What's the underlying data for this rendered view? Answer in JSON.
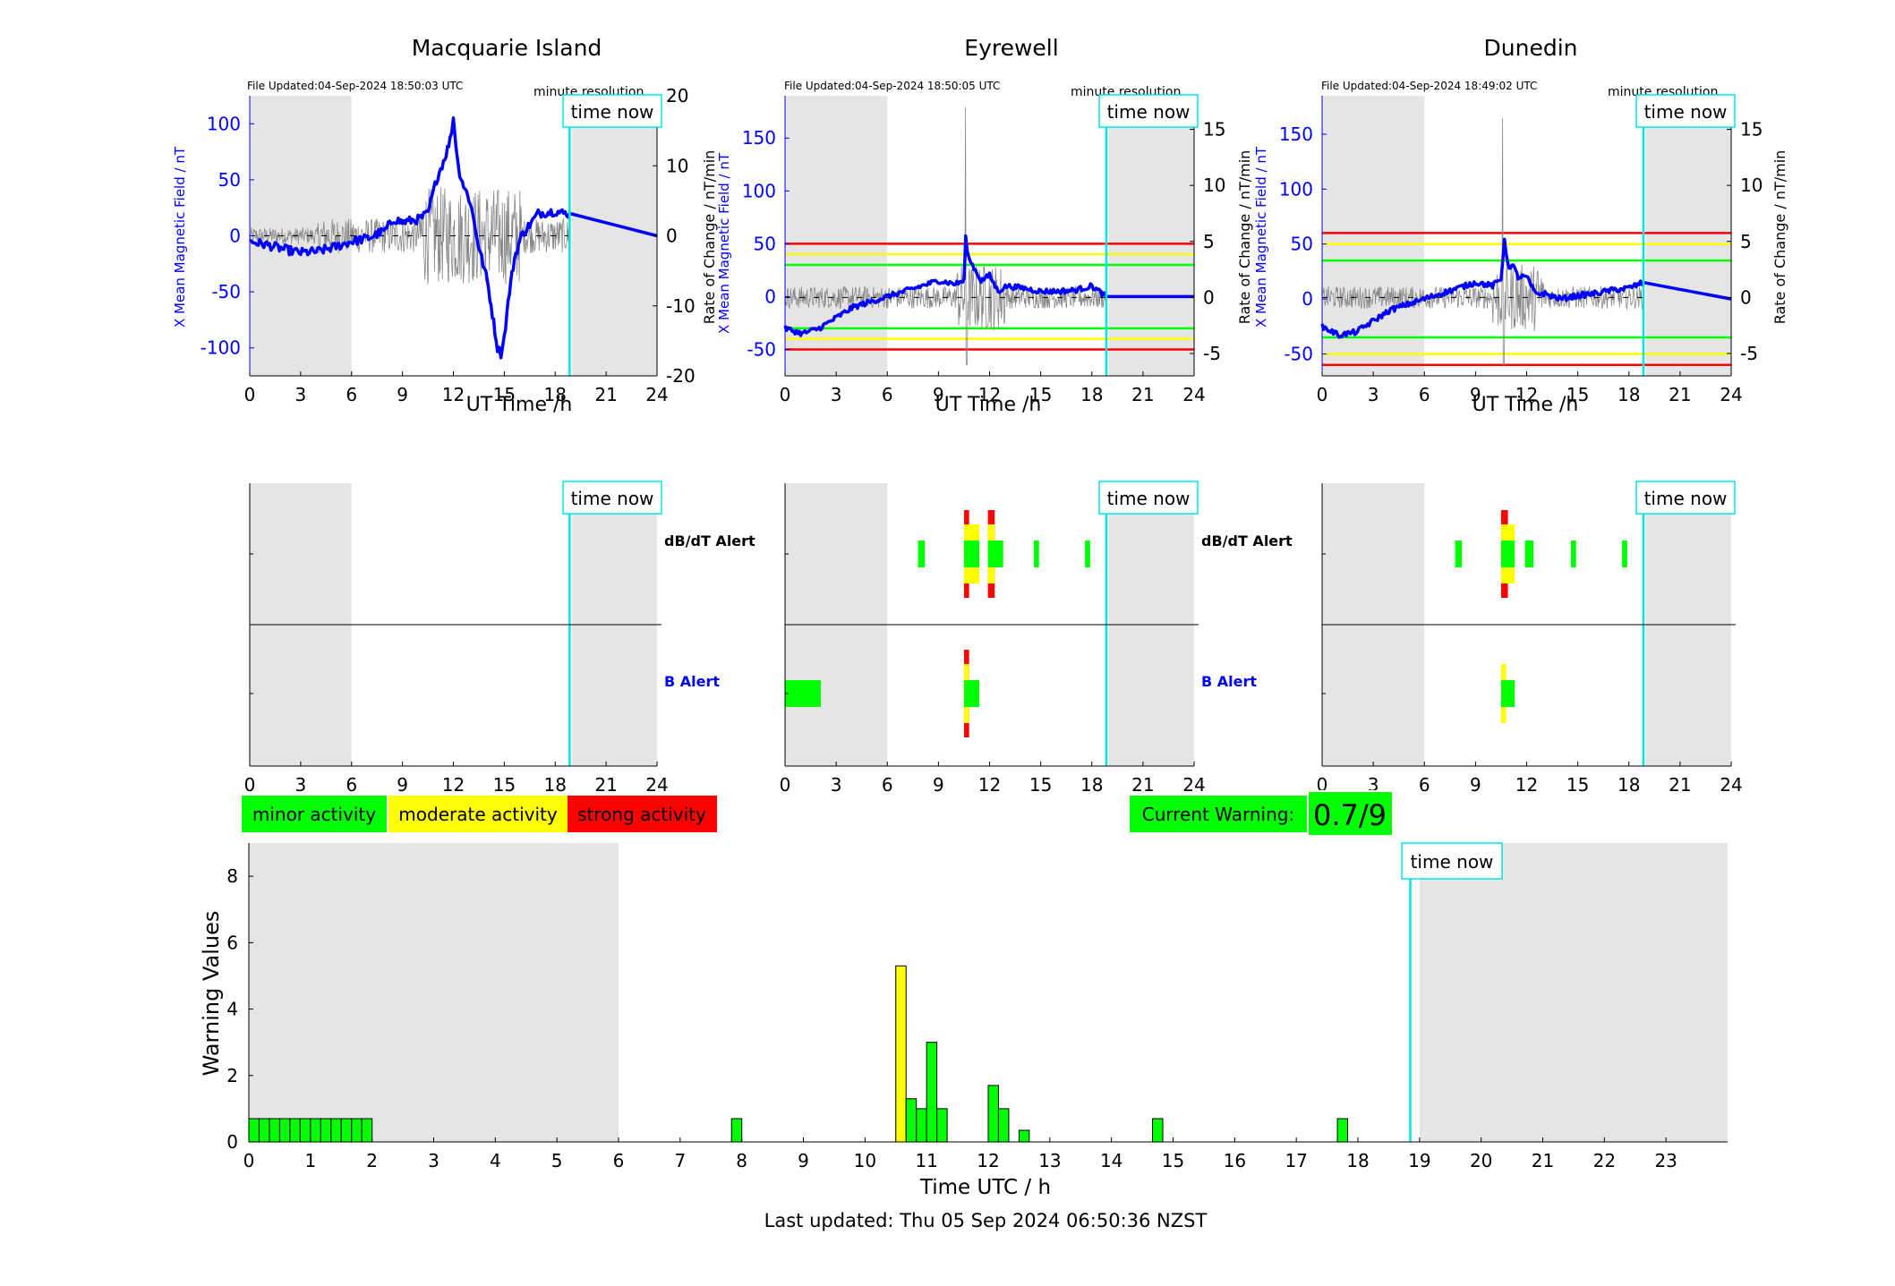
{
  "panels": [
    {
      "title": "Macquarie Island",
      "file_updated": "File Updated:04-Sep-2024 18:50:03 UTC",
      "resolution": "minute resolution",
      "time_now_label": "time now",
      "ylabel_left": "X Mean Magnetic Field / nT",
      "ylabel_right": "Rate of Change / nT/min",
      "xlabel": "UT Time /h",
      "alert_labels": {
        "dbdt": "dB/dT Alert",
        "b": "B Alert"
      }
    },
    {
      "title": "Eyrewell",
      "file_updated": "File Updated:04-Sep-2024 18:50:05 UTC",
      "resolution": "minute resolution",
      "time_now_label": "time now",
      "ylabel_left": "X Mean Magnetic Field / nT",
      "ylabel_right": "Rate of Change / nT/min",
      "xlabel": "UT Time /h",
      "alert_labels": {
        "dbdt": "dB/dT Alert",
        "b": "B Alert"
      }
    },
    {
      "title": "Dunedin",
      "file_updated": "File Updated:04-Sep-2024 18:49:02 UTC",
      "resolution": "minute resolution",
      "time_now_label": "time now",
      "ylabel_left": "X Mean Magnetic Field / nT",
      "ylabel_right": "Rate of Change / nT/min",
      "xlabel": "UT Time /h",
      "alert_labels": {
        "dbdt": "",
        "b": ""
      }
    }
  ],
  "legend": [
    {
      "label": "minor activity",
      "color": "#00ff00"
    },
    {
      "label": "moderate activity",
      "color": "#ffff00"
    },
    {
      "label": "strong activity",
      "color": "#ff0000"
    }
  ],
  "current_warning": {
    "label": "Current Warning:",
    "value": "0.7/9",
    "color": "#00ff00"
  },
  "bottom": {
    "time_now_label": "time now",
    "ylabel": "Warning Values",
    "xlabel": "Time UTC / h",
    "footer": "Last updated: Thu 05 Sep 2024 06:50:36 NZST"
  },
  "colors": {
    "field_line": "#0000ff",
    "rate_line": "#888888",
    "time_now": "#00e5e5",
    "night_shade": "#e5e5e5",
    "minor": "#00ff00",
    "moderate": "#ffff00",
    "strong": "#ff0000",
    "axis_left": "#0000ff"
  },
  "chart_data": [
    {
      "type": "line",
      "station": "Macquarie Island",
      "x_range": [
        0,
        24
      ],
      "x_ticks": [
        0,
        3,
        6,
        9,
        12,
        15,
        18,
        21,
        24
      ],
      "y_left_range": [
        -125,
        125
      ],
      "y_left_ticks": [
        -100,
        -50,
        0,
        50,
        100
      ],
      "y_right_range": [
        -20,
        20
      ],
      "y_right_ticks": [
        -20,
        -10,
        0,
        10,
        20
      ],
      "shaded_hours": [
        [
          0,
          6
        ],
        [
          19,
          24
        ]
      ],
      "time_now": 18.85,
      "thresholds": [],
      "series": [
        {
          "axis": "left",
          "x": [
            0,
            1,
            2,
            3,
            4,
            5,
            6,
            7,
            8,
            8.5,
            9,
            10,
            10.5,
            11,
            11.5,
            11.8,
            12,
            12.3,
            12.6,
            13,
            13.5,
            14,
            14.3,
            14.6,
            14.8,
            15,
            15.3,
            15.6,
            16,
            16.5,
            17,
            18,
            18.5,
            18.85,
            24
          ],
          "values": [
            -5,
            -8,
            -12,
            -15,
            -14,
            -10,
            -5,
            -2,
            5,
            15,
            12,
            15,
            20,
            50,
            70,
            85,
            105,
            60,
            45,
            30,
            -10,
            -40,
            -70,
            -100,
            -105,
            -90,
            -50,
            -20,
            0,
            10,
            20,
            22,
            20,
            20,
            0
          ]
        }
      ],
      "rate_series": {
        "axis": "right",
        "note_values_range": [
          -10,
          10
        ]
      }
    },
    {
      "type": "line",
      "station": "Eyrewell",
      "x_range": [
        0,
        24
      ],
      "x_ticks": [
        0,
        3,
        6,
        9,
        12,
        15,
        18,
        21,
        24
      ],
      "y_left_range": [
        -75,
        190
      ],
      "y_left_ticks": [
        -50,
        0,
        50,
        100,
        150
      ],
      "y_right_range": [
        -7,
        18
      ],
      "y_right_ticks": [
        -5,
        0,
        5,
        10,
        15
      ],
      "shaded_hours": [
        [
          0,
          6
        ],
        [
          19,
          24
        ]
      ],
      "time_now": 18.85,
      "thresholds": [
        {
          "value": 50,
          "color": "#ff0000"
        },
        {
          "value": 40,
          "color": "#ffff00"
        },
        {
          "value": 30,
          "color": "#00ff00"
        },
        {
          "value": -30,
          "color": "#00ff00"
        },
        {
          "value": -40,
          "color": "#ffff00"
        },
        {
          "value": -50,
          "color": "#ff0000"
        }
      ],
      "series": [
        {
          "axis": "left",
          "x": [
            0,
            1,
            2,
            3,
            4,
            5,
            6,
            7,
            8,
            9,
            10,
            10.5,
            10.6,
            10.8,
            11,
            11.5,
            12,
            12.5,
            13,
            14,
            15,
            16,
            17,
            18,
            18.85,
            24
          ],
          "values": [
            -30,
            -35,
            -30,
            -20,
            -10,
            -5,
            0,
            5,
            10,
            15,
            12,
            15,
            55,
            35,
            30,
            15,
            20,
            5,
            10,
            8,
            5,
            5,
            6,
            10,
            0,
            0
          ]
        }
      ],
      "rate_series": {
        "axis": "right",
        "note_values_range": [
          -6,
          18
        ]
      }
    },
    {
      "type": "line",
      "station": "Dunedin",
      "x_range": [
        0,
        24
      ],
      "x_ticks": [
        0,
        3,
        6,
        9,
        12,
        15,
        18,
        21,
        24
      ],
      "y_left_range": [
        -70,
        185
      ],
      "y_left_ticks": [
        -50,
        0,
        50,
        100,
        150
      ],
      "y_right_range": [
        -7,
        18
      ],
      "y_right_ticks": [
        -5,
        0,
        5,
        10,
        15
      ],
      "shaded_hours": [
        [
          0,
          6
        ],
        [
          19,
          24
        ]
      ],
      "time_now": 18.85,
      "thresholds": [
        {
          "value": 60,
          "color": "#ff0000"
        },
        {
          "value": 50,
          "color": "#ffff00"
        },
        {
          "value": 35,
          "color": "#00ff00"
        },
        {
          "value": -35,
          "color": "#00ff00"
        },
        {
          "value": -50,
          "color": "#ffff00"
        },
        {
          "value": -60,
          "color": "#ff0000"
        }
      ],
      "series": [
        {
          "axis": "left",
          "x": [
            0,
            1,
            2,
            3,
            4,
            5,
            6,
            7,
            8,
            9,
            10,
            10.5,
            10.7,
            10.9,
            11.2,
            11.5,
            12,
            12.5,
            13,
            14,
            15,
            16,
            17,
            18,
            18.85,
            24
          ],
          "values": [
            -25,
            -33,
            -30,
            -20,
            -10,
            -5,
            0,
            5,
            10,
            15,
            12,
            18,
            55,
            30,
            30,
            20,
            20,
            5,
            5,
            0,
            3,
            5,
            8,
            10,
            15,
            0
          ]
        }
      ],
      "rate_series": {
        "axis": "right",
        "note_values_range": [
          -6,
          17
        ]
      }
    },
    {
      "type": "bar",
      "name": "alerts",
      "stations": [
        "Macquarie Island",
        "Eyrewell",
        "Dunedin"
      ],
      "x_range": [
        0,
        24
      ],
      "x_ticks": [
        0,
        3,
        6,
        9,
        12,
        15,
        18,
        21,
        24
      ],
      "rows": [
        "dB/dT Alert",
        "B Alert"
      ],
      "alerts": [
        [],
        [
          {
            "row": "dB/dT Alert",
            "start": 7.8,
            "end": 8.2,
            "level": "minor"
          },
          {
            "row": "dB/dT Alert",
            "start": 10.5,
            "end": 10.8,
            "level": "strong"
          },
          {
            "row": "dB/dT Alert",
            "start": 10.8,
            "end": 11.4,
            "level": "moderate"
          },
          {
            "row": "dB/dT Alert",
            "start": 11.9,
            "end": 12.3,
            "level": "strong"
          },
          {
            "row": "dB/dT Alert",
            "start": 12.3,
            "end": 12.8,
            "level": "minor"
          },
          {
            "row": "dB/dT Alert",
            "start": 14.6,
            "end": 14.9,
            "level": "minor"
          },
          {
            "row": "dB/dT Alert",
            "start": 17.6,
            "end": 17.9,
            "level": "minor"
          },
          {
            "row": "B Alert",
            "start": 0,
            "end": 2.1,
            "level": "minor"
          },
          {
            "row": "B Alert",
            "start": 10.5,
            "end": 10.8,
            "level": "strong"
          },
          {
            "row": "B Alert",
            "start": 10.8,
            "end": 11.4,
            "level": "minor"
          }
        ],
        [
          {
            "row": "dB/dT Alert",
            "start": 7.8,
            "end": 8.2,
            "level": "minor"
          },
          {
            "row": "dB/dT Alert",
            "start": 10.5,
            "end": 10.9,
            "level": "strong"
          },
          {
            "row": "dB/dT Alert",
            "start": 10.9,
            "end": 11.3,
            "level": "moderate"
          },
          {
            "row": "dB/dT Alert",
            "start": 11.9,
            "end": 12.4,
            "level": "minor"
          },
          {
            "row": "dB/dT Alert",
            "start": 14.6,
            "end": 14.9,
            "level": "minor"
          },
          {
            "row": "dB/dT Alert",
            "start": 17.6,
            "end": 17.9,
            "level": "minor"
          },
          {
            "row": "B Alert",
            "start": 10.5,
            "end": 10.8,
            "level": "moderate"
          },
          {
            "row": "B Alert",
            "start": 10.8,
            "end": 11.3,
            "level": "minor"
          }
        ]
      ]
    },
    {
      "type": "bar",
      "name": "warning values",
      "x_range": [
        0,
        24
      ],
      "x_ticks": [
        0,
        1,
        2,
        3,
        4,
        5,
        6,
        7,
        8,
        9,
        10,
        11,
        12,
        13,
        14,
        15,
        16,
        17,
        18,
        19,
        20,
        21,
        22,
        23
      ],
      "ylim": [
        0,
        9
      ],
      "y_ticks": [
        0,
        2,
        4,
        6,
        8
      ],
      "shaded_hours": [
        [
          0,
          6
        ],
        [
          19,
          24
        ]
      ],
      "time_now": 18.85,
      "bar_width_h": 0.1667,
      "bars": [
        {
          "x": 0.083,
          "value": 0.7,
          "level": "minor"
        },
        {
          "x": 0.25,
          "value": 0.7,
          "level": "minor"
        },
        {
          "x": 0.417,
          "value": 0.7,
          "level": "minor"
        },
        {
          "x": 0.583,
          "value": 0.7,
          "level": "minor"
        },
        {
          "x": 0.75,
          "value": 0.7,
          "level": "minor"
        },
        {
          "x": 0.917,
          "value": 0.7,
          "level": "minor"
        },
        {
          "x": 1.083,
          "value": 0.7,
          "level": "minor"
        },
        {
          "x": 1.25,
          "value": 0.7,
          "level": "minor"
        },
        {
          "x": 1.417,
          "value": 0.7,
          "level": "minor"
        },
        {
          "x": 1.583,
          "value": 0.7,
          "level": "minor"
        },
        {
          "x": 1.75,
          "value": 0.7,
          "level": "minor"
        },
        {
          "x": 1.917,
          "value": 0.7,
          "level": "minor"
        },
        {
          "x": 7.917,
          "value": 0.7,
          "level": "minor"
        },
        {
          "x": 10.583,
          "value": 5.3,
          "level": "moderate"
        },
        {
          "x": 10.75,
          "value": 1.3,
          "level": "minor"
        },
        {
          "x": 10.917,
          "value": 1.0,
          "level": "minor"
        },
        {
          "x": 11.083,
          "value": 3.0,
          "level": "minor"
        },
        {
          "x": 11.25,
          "value": 1.0,
          "level": "minor"
        },
        {
          "x": 12.083,
          "value": 1.7,
          "level": "minor"
        },
        {
          "x": 12.25,
          "value": 1.0,
          "level": "minor"
        },
        {
          "x": 12.583,
          "value": 0.35,
          "level": "minor"
        },
        {
          "x": 14.75,
          "value": 0.7,
          "level": "minor"
        },
        {
          "x": 17.75,
          "value": 0.7,
          "level": "minor"
        }
      ]
    }
  ]
}
